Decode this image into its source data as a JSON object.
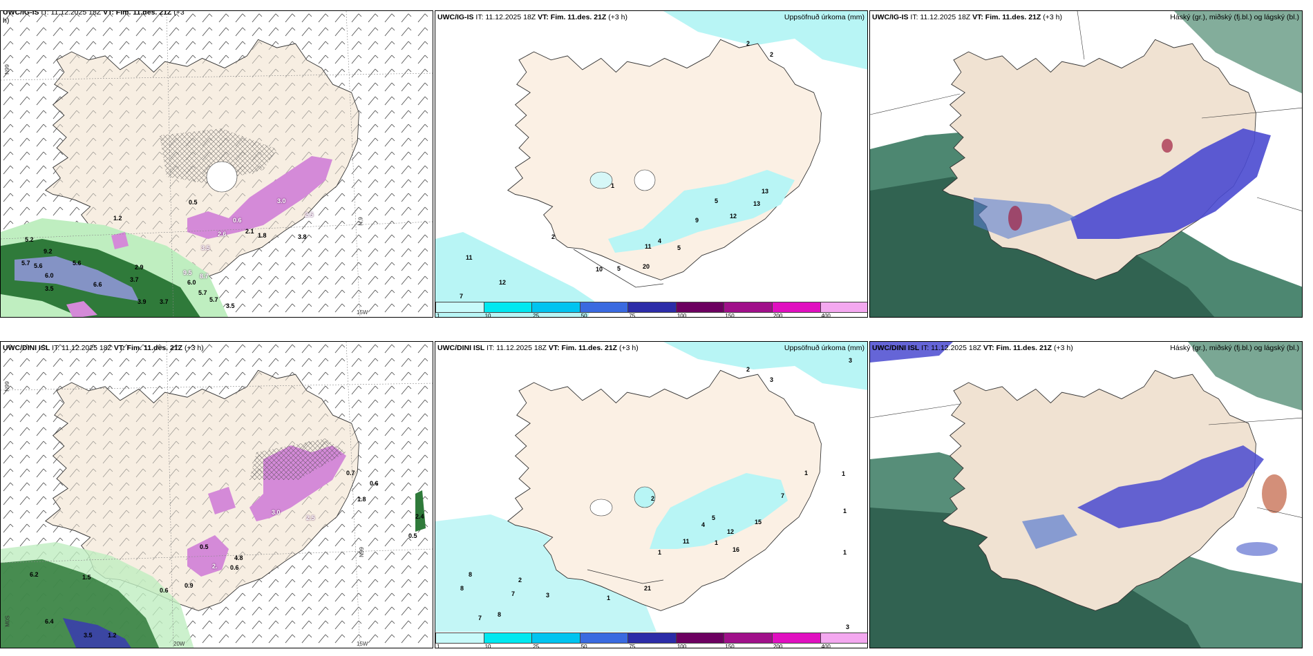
{
  "colors": {
    "land": "#f7eee2",
    "land_precip": "#f0e2d2",
    "coast": "#333333",
    "precip_cyan": "#b8f5f5",
    "green_dark": "#1f5b2a",
    "green_light": "#bfeec0",
    "magenta": "#d48ad8",
    "blue_cloud": "#4a4ad0",
    "teal_cloud": "#3a7a62"
  },
  "panels": {
    "p1": {
      "header_model": "UWC/IG-IS",
      "header_rest": " IT: 11.12.2025 18Z ",
      "header_vt": "VT: Fim. 11.des. 21Z",
      "header_lead": " (+3",
      "header_wrap": "h)",
      "lat_left": "N99",
      "lat_mid": "N,9",
      "lon_bottom": "15W",
      "labels": [
        "0.5",
        "1.2",
        "5.2",
        "9.2",
        "5.6",
        "5.7",
        "5.6",
        "6.0",
        "3.5",
        "6.6",
        "3.7",
        "2.9",
        "3.9",
        "3.7",
        "5.7",
        "5.7",
        "3.5",
        "6.0",
        "8.7",
        "9.5",
        "3.5",
        "2.6",
        "2.1",
        "1.8",
        "3.0",
        "2.5",
        "0.6",
        "3.8"
      ]
    },
    "p2": {
      "header_model": "UWC/IG-IS",
      "header_rest": " IT: 11.12.2025 18Z ",
      "header_vt": "VT: Fim. 11.des. 21Z",
      "header_lead": " (+3 h)",
      "title_right": "Uppsöfnuð úrkoma (mm)",
      "labels": [
        "2",
        "2",
        "1",
        "5",
        "9",
        "13",
        "13",
        "12",
        "4",
        "5",
        "11",
        "20",
        "10",
        "5",
        "2",
        "11",
        "12",
        "7"
      ],
      "legend": [
        "1",
        "10",
        "25",
        "50",
        "75",
        "100",
        "150",
        "200",
        "400"
      ]
    },
    "p3": {
      "header_model": "UWC/IG-IS",
      "header_rest": " IT: 11.12.2025 18Z ",
      "header_vt": "VT: Fim. 11.des. 21Z",
      "header_lead": " (+3 h)",
      "title_right": "Háský (gr.), miðský (fj.bl.) og lágský (bl.)"
    },
    "p4": {
      "header_model": "UWC/DINI ISL",
      "header_rest": " IT: 11.12.2025 18Z ",
      "header_vt": "VT: Fim. 11.des. 21Z",
      "header_lead": " (+3 h)",
      "lat_left": "N99",
      "lat_mid": "N99",
      "lon_bottom": "15W",
      "lon_bottom2": "20W",
      "lat_low": "M0S",
      "labels": [
        "0.7",
        "0.6",
        "1.8",
        "3.0",
        "2.5",
        "0.5",
        "4.8",
        "0.6",
        "2.",
        "0.9",
        "6.2",
        "1.5",
        "6.4",
        "3.5",
        "1.2",
        "0.6",
        "0.5",
        "2.4"
      ]
    },
    "p5": {
      "header_model": "UWC/DINI ISL",
      "header_rest": " IT: 11.12.2025 18Z ",
      "header_vt": "VT: Fim. 11.des. 21Z",
      "header_lead": " (+3 h)",
      "title_right": "Uppsöfnuð úrkoma (mm)",
      "labels": [
        "2",
        "3",
        "3",
        "1",
        "7",
        "2",
        "15",
        "4",
        "5",
        "12",
        "11",
        "1",
        "16",
        "1",
        "21",
        "8",
        "8",
        "7",
        "3",
        "2",
        "1",
        "8",
        "7",
        "1",
        "1",
        "3",
        "1"
      ],
      "legend": [
        "1",
        "10",
        "25",
        "50",
        "75",
        "100",
        "150",
        "200",
        "400"
      ]
    },
    "p6": {
      "header_model": "UWC/DINI ISL",
      "header_rest": " IT: 11.12.2025 18Z ",
      "header_vt": "VT: Fim. 11.des. 21Z",
      "header_lead": " (+3 h)",
      "title_right": "Háský (gr.), miðský (fj.bl.) og lágský (bl.)"
    }
  },
  "legend_colors": [
    "#c8fafa",
    "#00e8f0",
    "#00c4f0",
    "#3a6ae0",
    "#2c2ca8",
    "#6c0060",
    "#a0108a",
    "#e010c0",
    "#f4a8f0"
  ]
}
